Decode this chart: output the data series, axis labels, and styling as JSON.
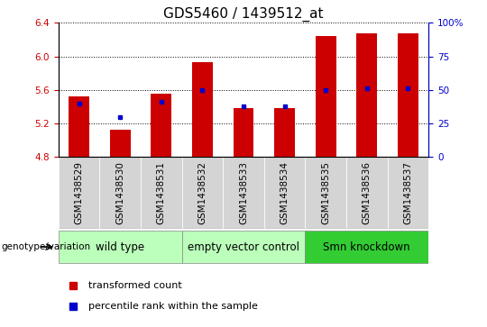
{
  "title": "GDS5460 / 1439512_at",
  "samples": [
    "GSM1438529",
    "GSM1438530",
    "GSM1438531",
    "GSM1438532",
    "GSM1438533",
    "GSM1438534",
    "GSM1438535",
    "GSM1438536",
    "GSM1438537"
  ],
  "transformed_count": [
    5.52,
    5.12,
    5.56,
    5.93,
    5.38,
    5.38,
    6.24,
    6.28,
    6.28
  ],
  "percentile_rank": [
    5.44,
    5.28,
    5.46,
    5.6,
    5.4,
    5.4,
    5.6,
    5.62,
    5.62
  ],
  "ylim_left": [
    4.8,
    6.4
  ],
  "ylim_right": [
    0,
    100
  ],
  "yticks_left": [
    4.8,
    5.2,
    5.6,
    6.0,
    6.4
  ],
  "yticks_right": [
    0,
    25,
    50,
    75,
    100
  ],
  "group_boundaries": [
    {
      "start": 0,
      "end": 2,
      "label": "wild type",
      "color": "#bbffbb"
    },
    {
      "start": 3,
      "end": 5,
      "label": "empty vector control",
      "color": "#bbffbb"
    },
    {
      "start": 6,
      "end": 8,
      "label": "Smn knockdown",
      "color": "#33cc33"
    }
  ],
  "bar_color": "#cc0000",
  "dot_color": "#0000cc",
  "bar_bottom": 4.8,
  "bar_width": 0.5,
  "left_tick_color": "#cc0000",
  "right_tick_color": "#0000cc",
  "title_fontsize": 11,
  "tick_label_fontsize": 7.5,
  "group_label_fontsize": 8.5,
  "legend_fontsize": 8,
  "genotype_label": "genotype/variation",
  "legend_red_label": "transformed count",
  "legend_blue_label": "percentile rank within the sample",
  "gray_bg": "#d4d4d4"
}
